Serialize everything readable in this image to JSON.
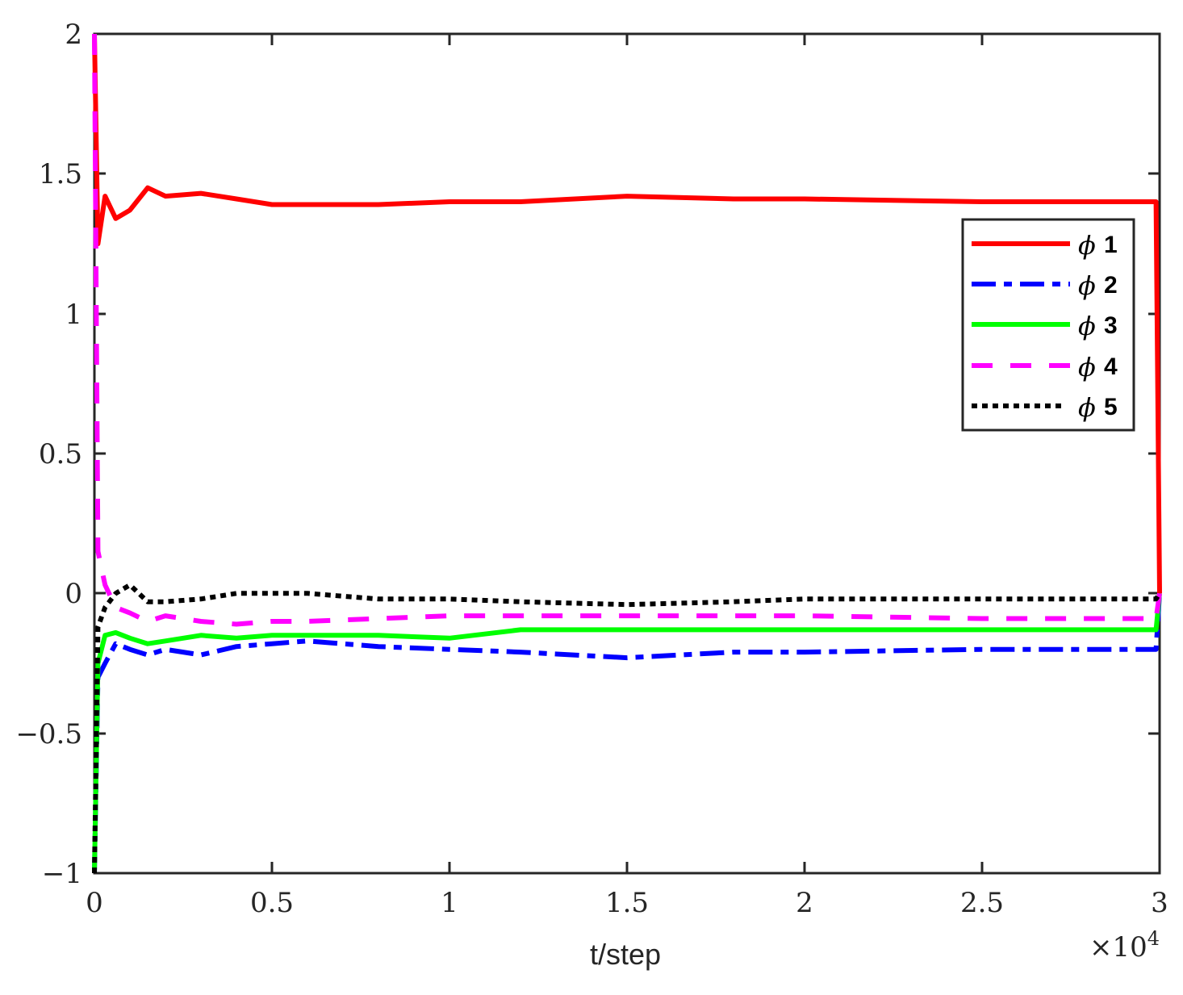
{
  "chart_data": {
    "type": "line",
    "title": "",
    "xlabel": "t/step",
    "ylabel": "",
    "x_multiplier": "×10^4",
    "xlim": [
      0,
      30000
    ],
    "ylim": [
      -1,
      2
    ],
    "xticks": [
      "0",
      "0.5",
      "1",
      "1.5",
      "2",
      "2.5",
      "3"
    ],
    "yticks": [
      "−1",
      "−0.5",
      "0",
      "0.5",
      "1",
      "1.5",
      "2"
    ],
    "grid": false,
    "legend_position": "northeast-inside",
    "x": [
      0,
      100,
      300,
      600,
      1000,
      1500,
      2000,
      3000,
      4000,
      5000,
      6000,
      8000,
      10000,
      12000,
      15000,
      18000,
      20000,
      25000,
      29900
    ],
    "series": [
      {
        "name": "ϕ 1",
        "color": "#ff0000",
        "style": "solid",
        "values": [
          2.0,
          1.25,
          1.42,
          1.34,
          1.37,
          1.45,
          1.42,
          1.43,
          1.41,
          1.39,
          1.39,
          1.39,
          1.4,
          1.4,
          1.42,
          1.41,
          1.41,
          1.4,
          1.4
        ]
      },
      {
        "name": "ϕ 2",
        "color": "#0000ff",
        "style": "dashdot",
        "values": [
          -1.0,
          -0.3,
          -0.25,
          -0.18,
          -0.2,
          -0.22,
          -0.2,
          -0.22,
          -0.19,
          -0.18,
          -0.17,
          -0.19,
          -0.2,
          -0.21,
          -0.23,
          -0.21,
          -0.21,
          -0.2,
          -0.2
        ]
      },
      {
        "name": "ϕ 3",
        "color": "#00ff00",
        "style": "solid",
        "values": [
          -1.0,
          -0.25,
          -0.15,
          -0.14,
          -0.16,
          -0.18,
          -0.17,
          -0.15,
          -0.16,
          -0.15,
          -0.15,
          -0.15,
          -0.16,
          -0.13,
          -0.13,
          -0.13,
          -0.13,
          -0.13,
          -0.13
        ]
      },
      {
        "name": "ϕ 4",
        "color": "#ff00ff",
        "style": "dashed",
        "values": [
          2.0,
          0.15,
          0.03,
          -0.05,
          -0.07,
          -0.1,
          -0.08,
          -0.1,
          -0.11,
          -0.1,
          -0.1,
          -0.09,
          -0.08,
          -0.08,
          -0.08,
          -0.08,
          -0.08,
          -0.09,
          -0.09
        ]
      },
      {
        "name": "ϕ 5",
        "color": "#000000",
        "style": "dotted",
        "values": [
          -1.0,
          -0.12,
          -0.05,
          0.0,
          0.03,
          -0.03,
          -0.03,
          -0.02,
          0.0,
          0.0,
          0.0,
          -0.02,
          -0.02,
          -0.03,
          -0.04,
          -0.03,
          -0.02,
          -0.02,
          -0.02
        ]
      }
    ]
  },
  "legend": [
    {
      "sym": "ϕ",
      "num": "1"
    },
    {
      "sym": "ϕ",
      "num": "2"
    },
    {
      "sym": "ϕ",
      "num": "3"
    },
    {
      "sym": "ϕ",
      "num": "4"
    },
    {
      "sym": "ϕ",
      "num": "5"
    }
  ],
  "axis": {
    "xlabel": "t/step",
    "multiplier_base": "×10",
    "multiplier_exp": "4",
    "xticks": [
      "0",
      "0.5",
      "1",
      "1.5",
      "2",
      "2.5",
      "3"
    ],
    "yticks": [
      "−1",
      "−0.5",
      "0",
      "0.5",
      "1",
      "1.5",
      "2"
    ]
  }
}
